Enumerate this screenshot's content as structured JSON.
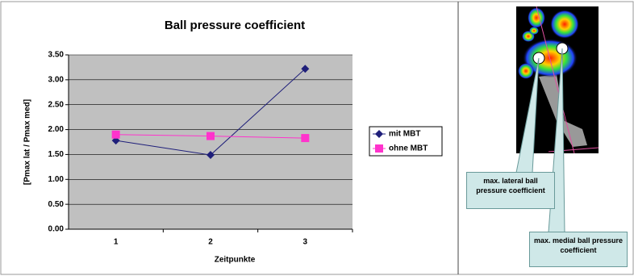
{
  "chart_data": {
    "type": "line",
    "title": "Ball pressure coefficient",
    "xlabel": "Zeitpunkte",
    "ylabel": "[Pmax lat / Pmax med]",
    "categories": [
      "1",
      "2",
      "3"
    ],
    "series": [
      {
        "name": "mit MBT",
        "color": "#1f1f7a",
        "marker": "diamond",
        "values": [
          1.78,
          1.49,
          3.22
        ]
      },
      {
        "name": "ohne MBT",
        "color": "#ff33cc",
        "marker": "square",
        "values": [
          1.9,
          1.87,
          1.83
        ]
      }
    ],
    "ylim": [
      0,
      3.5
    ],
    "yticks": [
      {
        "value": 0,
        "label": "0.00"
      },
      {
        "value": 0.5,
        "label": "0.50"
      },
      {
        "value": 1,
        "label": "1.00"
      },
      {
        "value": 1.5,
        "label": "1.50"
      },
      {
        "value": 2,
        "label": "2.00"
      },
      {
        "value": 2.5,
        "label": "2.50"
      },
      {
        "value": 3,
        "label": "3.00"
      },
      {
        "value": 3.5,
        "label": "3.50"
      }
    ],
    "grid": true,
    "legend": "right",
    "annotations": [
      "max. lateral ball pressure coefficient",
      "max. medial ball pressure coefficient"
    ]
  }
}
